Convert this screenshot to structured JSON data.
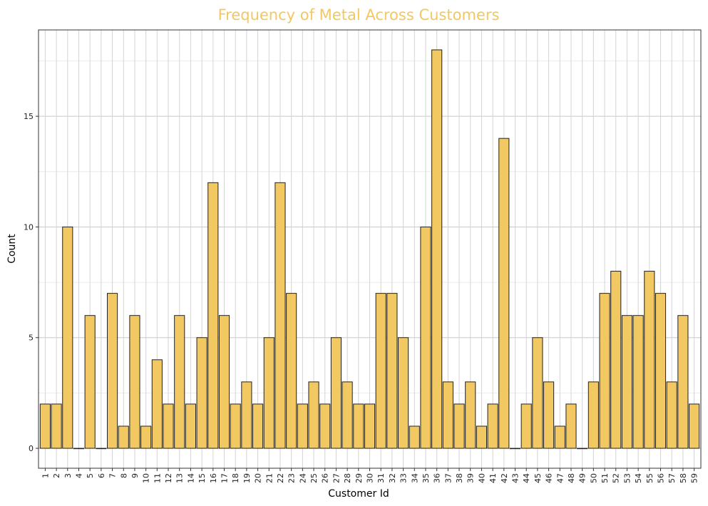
{
  "chart_data": {
    "type": "bar",
    "title": "Frequency of Metal Across Customers",
    "xlabel": "Customer Id",
    "ylabel": "Count",
    "categories": [
      "1",
      "2",
      "3",
      "4",
      "5",
      "6",
      "7",
      "8",
      "9",
      "10",
      "11",
      "12",
      "13",
      "14",
      "15",
      "16",
      "17",
      "18",
      "19",
      "20",
      "21",
      "22",
      "23",
      "24",
      "25",
      "26",
      "27",
      "28",
      "29",
      "30",
      "31",
      "32",
      "33",
      "34",
      "35",
      "36",
      "37",
      "38",
      "39",
      "40",
      "41",
      "42",
      "43",
      "44",
      "45",
      "46",
      "47",
      "48",
      "49",
      "50",
      "51",
      "52",
      "53",
      "54",
      "55",
      "56",
      "57",
      "58",
      "59"
    ],
    "values": [
      2,
      2,
      10,
      0,
      6,
      0,
      7,
      1,
      6,
      1,
      4,
      2,
      6,
      2,
      5,
      12,
      6,
      2,
      3,
      2,
      5,
      12,
      7,
      2,
      3,
      2,
      5,
      3,
      2,
      2,
      7,
      7,
      5,
      1,
      10,
      18,
      3,
      2,
      3,
      1,
      2,
      14,
      0,
      2,
      5,
      3,
      1,
      2,
      0,
      3,
      7,
      8,
      6,
      6,
      8,
      7,
      3,
      6,
      2
    ],
    "ylim": [
      -0.9,
      18.9
    ],
    "yticks": [
      0,
      5,
      10,
      15
    ],
    "grid": true,
    "colors": {
      "bar_fill": "#f2c862",
      "bar_edge": "#222222",
      "title": "#f2c862"
    }
  }
}
